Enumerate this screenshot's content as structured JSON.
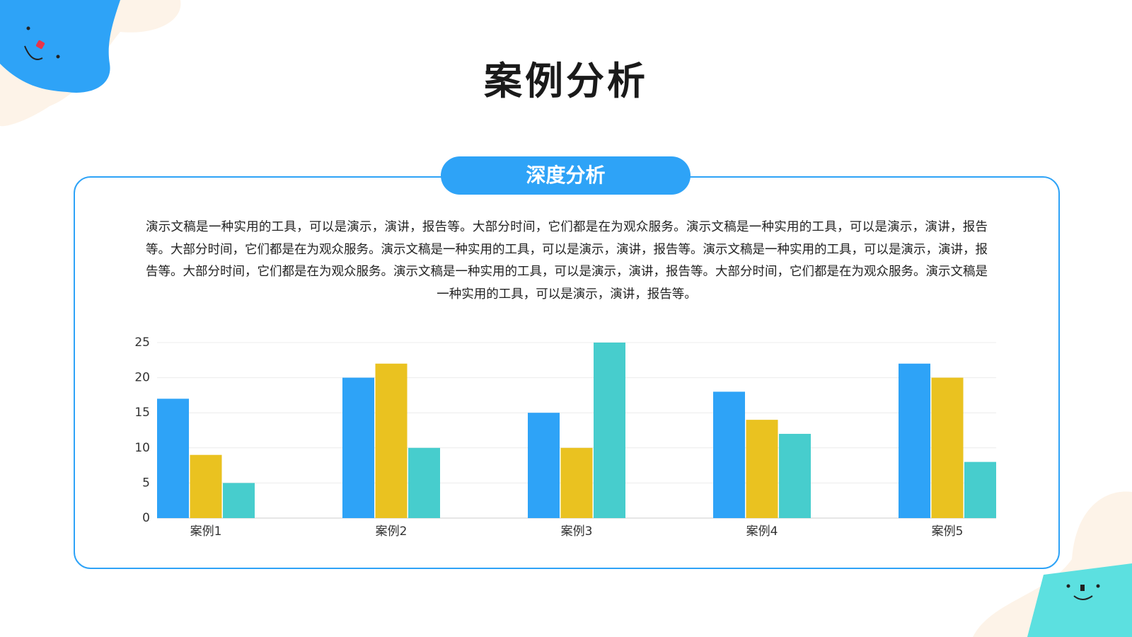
{
  "title": "案例分析",
  "section": "深度分析",
  "body": "演示文稿是一种实用的工具，可以是演示，演讲，报告等。大部分时间，它们都是在为观众服务。演示文稿是一种实用的工具，可以是演示，演讲，报告等。大部分时间，它们都是在为观众服务。演示文稿是一种实用的工具，可以是演示，演讲，报告等。演示文稿是一种实用的工具，可以是演示，演讲，报告等。大部分时间，它们都是在为观众服务。演示文稿是一种实用的工具，可以是演示，演讲，报告等。大部分时间，它们都是在为观众服务。演示文稿是一种实用的工具，可以是演示，演讲，报告等。",
  "chart_data": {
    "type": "bar",
    "categories": [
      "案例1",
      "案例2",
      "案例3",
      "案例4",
      "案例5"
    ],
    "series": [
      {
        "color": "#2ea3f7",
        "values": [
          17,
          20,
          15,
          18,
          22
        ]
      },
      {
        "color": "#eac220",
        "values": [
          9,
          22,
          10,
          14,
          20
        ]
      },
      {
        "color": "#47cdcd",
        "values": [
          5,
          10,
          25,
          12,
          8
        ]
      }
    ],
    "ylim": [
      0,
      25
    ],
    "yticks": [
      0,
      5,
      10,
      15,
      20,
      25
    ],
    "grid": true
  }
}
